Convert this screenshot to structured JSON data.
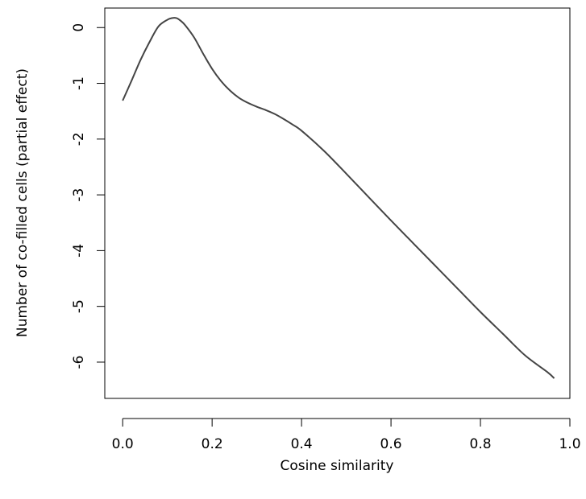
{
  "chart_data": {
    "type": "line",
    "title": "",
    "xlabel": "Cosine similarity",
    "ylabel": "Number of co-filled cells (partial effect)",
    "xlim": [
      -0.04,
      1.0
    ],
    "ylim": [
      -6.65,
      0.35
    ],
    "x_ticks": [
      0.0,
      0.2,
      0.4,
      0.6,
      0.8,
      1.0
    ],
    "x_tick_labels": [
      "0.0",
      "0.2",
      "0.4",
      "0.6",
      "0.8",
      "1.0"
    ],
    "y_ticks": [
      0,
      -1,
      -2,
      -3,
      -4,
      -5,
      -6
    ],
    "y_tick_labels": [
      "0",
      "-1",
      "-2",
      "-3",
      "-4",
      "-5",
      "-6"
    ],
    "grid": false,
    "series": [
      {
        "color": "#444444",
        "x": [
          0.0,
          0.02,
          0.04,
          0.06,
          0.08,
          0.1,
          0.11,
          0.12,
          0.13,
          0.14,
          0.16,
          0.18,
          0.2,
          0.22,
          0.24,
          0.26,
          0.28,
          0.3,
          0.32,
          0.34,
          0.36,
          0.38,
          0.4,
          0.45,
          0.5,
          0.55,
          0.6,
          0.65,
          0.7,
          0.75,
          0.8,
          0.85,
          0.9,
          0.95,
          0.965
        ],
        "y": [
          -1.31,
          -0.95,
          -0.58,
          -0.26,
          0.02,
          0.14,
          0.17,
          0.17,
          0.12,
          0.04,
          -0.18,
          -0.47,
          -0.74,
          -0.96,
          -1.13,
          -1.26,
          -1.35,
          -1.42,
          -1.48,
          -1.55,
          -1.64,
          -1.74,
          -1.85,
          -2.21,
          -2.62,
          -3.04,
          -3.46,
          -3.87,
          -4.28,
          -4.69,
          -5.1,
          -5.49,
          -5.88,
          -6.18,
          -6.29
        ]
      }
    ]
  }
}
